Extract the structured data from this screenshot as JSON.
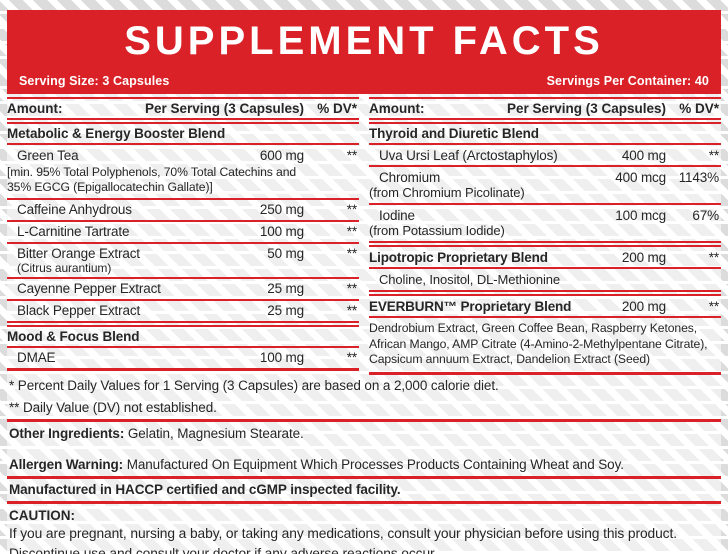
{
  "colors": {
    "accent": "#d92127",
    "stripe": "#dcdcdc",
    "ink": "#262626"
  },
  "header": {
    "title": "SUPPLEMENT FACTS",
    "serving_size": "Serving Size: 3 Capsules",
    "servings_per_container": "Servings Per Container: 40"
  },
  "table_header": {
    "amount": "Amount:",
    "per_serving": "Per Serving (3 Capsules)",
    "dv": "% DV*"
  },
  "left": {
    "blend1": "Metabolic & Energy Booster Blend",
    "green_tea": {
      "name": "Green Tea",
      "amount": "600 mg",
      "dv": "**",
      "note1": "[min. 95% Total Polyphenols, 70% Total Catechins and",
      "note2": "35% EGCG (Epigallocatechin Gallate)]"
    },
    "caffeine": {
      "name": "Caffeine Anhydrous",
      "amount": "250 mg",
      "dv": "**"
    },
    "lcarnitine": {
      "name": "L-Carnitine Tartrate",
      "amount": "100 mg",
      "dv": "**"
    },
    "bitter_orange": {
      "name": "Bitter Orange Extract",
      "name2": "(Citrus aurantium)",
      "amount": "50 mg",
      "dv": "**"
    },
    "cayenne": {
      "name": "Cayenne Pepper Extract",
      "amount": "25 mg",
      "dv": "**"
    },
    "black_pepper": {
      "name": "Black Pepper Extract",
      "amount": "25 mg",
      "dv": "**"
    },
    "blend2": "Mood & Focus Blend",
    "dmae": {
      "name": "DMAE",
      "amount": "100 mg",
      "dv": "**"
    }
  },
  "right": {
    "blend1": "Thyroid and Diuretic Blend",
    "uva_ursi": {
      "name": "Uva Ursi Leaf (Arctostaphylos)",
      "amount": "400 mg",
      "dv": "**"
    },
    "chromium": {
      "name": "Chromium",
      "amount": "400 mcg",
      "dv": "1143%",
      "source": "(from Chromium Picolinate)"
    },
    "iodine": {
      "name": "Iodine",
      "amount": "100 mcg",
      "dv": "67%",
      "source": "(from Potassium Iodide)"
    },
    "lipotropic": {
      "name": "Lipotropic Proprietary Blend",
      "amount": "200 mg",
      "dv": "**",
      "components": "Choline, Inositol, DL-Methionine"
    },
    "everburn": {
      "name": "EVERBURN™ Proprietary Blend",
      "amount": "200 mg",
      "dv": "**",
      "components": "Dendrobium Extract, Green Coffee Bean, Raspberry Ketones, African Mango, AMP Citrate (4-Amino-2-Methylpentane Citrate), Capsicum annuum Extract, Dandelion Extract (Seed)"
    }
  },
  "footnotes": {
    "dv_note": "* Percent Daily Values for 1 Serving (3 Capsules) are based on a 2,000 calorie diet.",
    "not_established": "** Daily Value (DV) not established."
  },
  "other_ingredients": {
    "label": "Other Ingredients:",
    "text": "Gelatin, Magnesium Stearate."
  },
  "allergen": {
    "label": "Allergen Warning:",
    "text": "Manufactured On Equipment Which Processes Products Containing Wheat and Soy."
  },
  "manufactured": "Manufactured in HACCP certified and cGMP inspected facility.",
  "caution": {
    "label": "CAUTION:",
    "text": "If you are pregnant, nursing a baby, or taking any medications, consult your physician before using this product. Discontinue use and consult your doctor if any adverse reactions occur."
  }
}
